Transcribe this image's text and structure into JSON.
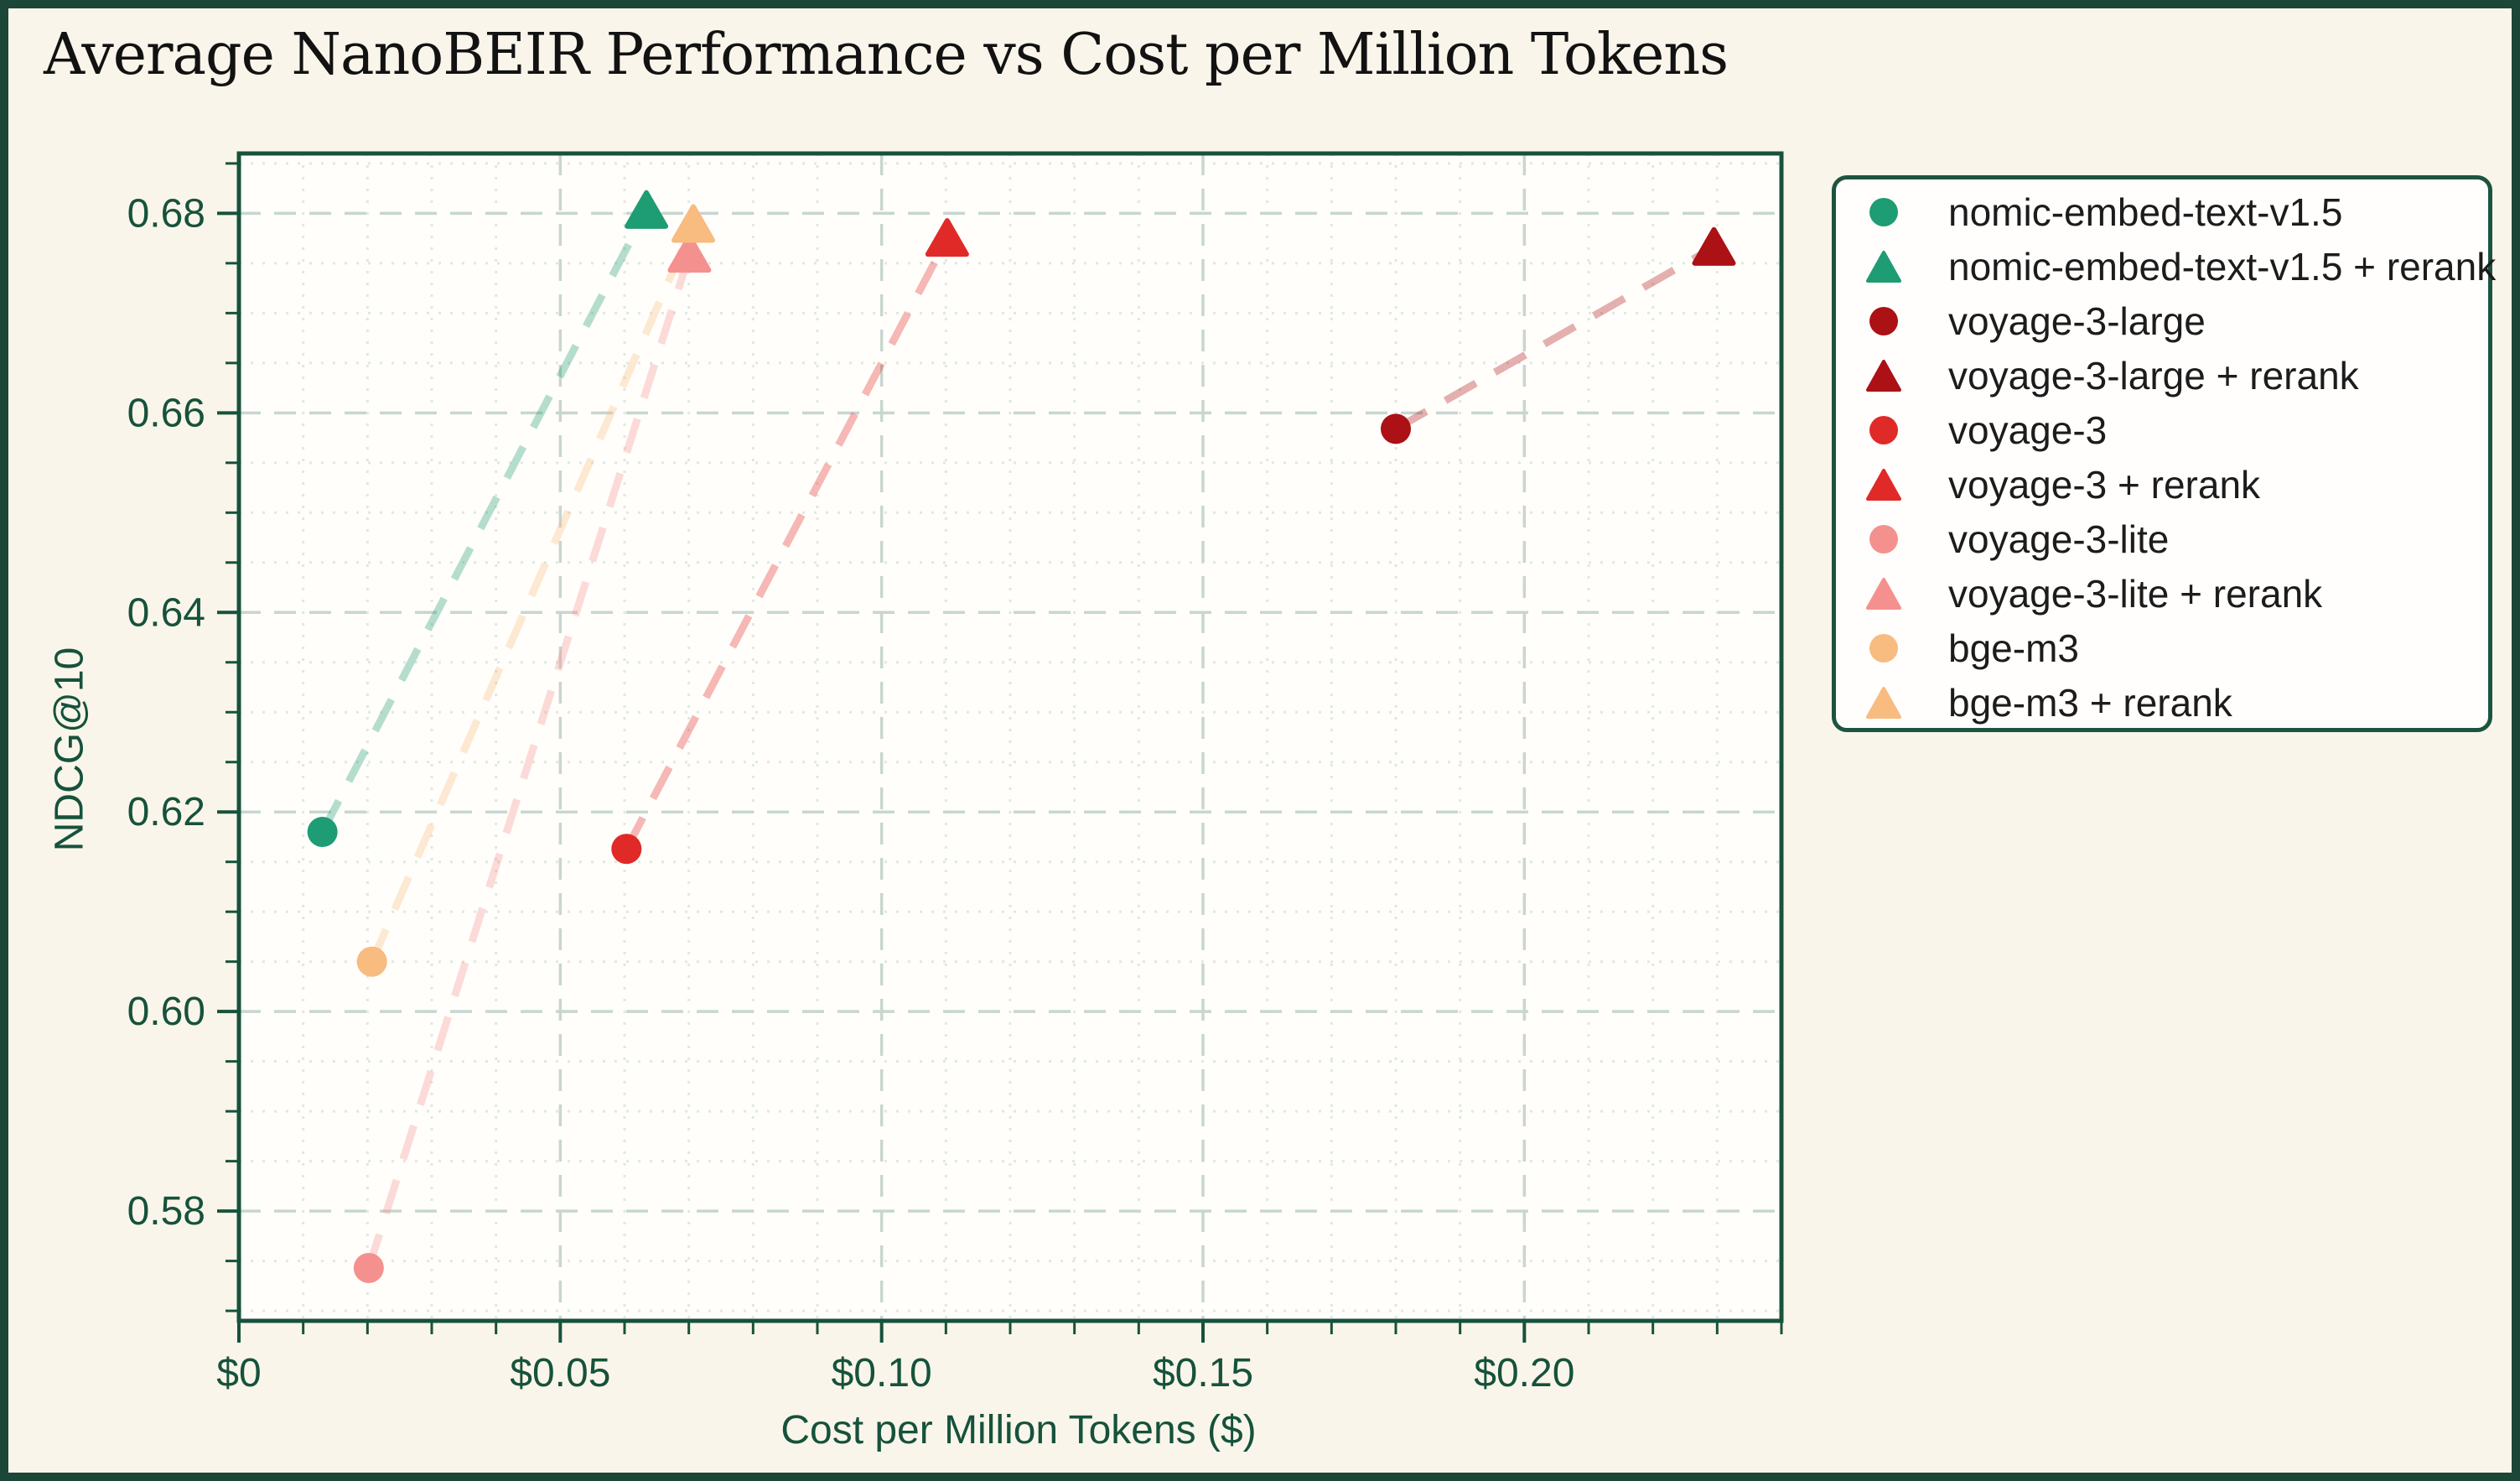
{
  "chart_data": {
    "type": "scatter",
    "title": "Average NanoBEIR Performance vs Cost per Million Tokens",
    "xlabel": "Cost per Million Tokens ($)",
    "ylabel": "NDCG@10",
    "xlim": [
      0,
      0.24
    ],
    "ylim": [
      0.569,
      0.686
    ],
    "grid": true,
    "legend_position": "outside-right",
    "x_ticks": [
      {
        "value": 0,
        "label": "$0"
      },
      {
        "value": 0.05,
        "label": "$0.05"
      },
      {
        "value": 0.1,
        "label": "$0.10"
      },
      {
        "value": 0.15,
        "label": "$0.15"
      },
      {
        "value": 0.2,
        "label": "$0.20"
      }
    ],
    "y_ticks": [
      {
        "value": 0.58,
        "label": "0.58"
      },
      {
        "value": 0.6,
        "label": "0.60"
      },
      {
        "value": 0.62,
        "label": "0.62"
      },
      {
        "value": 0.64,
        "label": "0.64"
      },
      {
        "value": 0.66,
        "label": "0.66"
      },
      {
        "value": 0.68,
        "label": "0.68"
      }
    ],
    "x_minor_step": 0.01,
    "y_minor_step": 0.005,
    "series": [
      {
        "name": "nomic-embed-text-v1.5",
        "marker": "circle",
        "color": "#1e9c74",
        "x": 0.013,
        "y": 0.618
      },
      {
        "name": "nomic-embed-text-v1.5 + rerank",
        "marker": "triangle",
        "color": "#1e9c74",
        "x": 0.0634,
        "y": 0.6803
      },
      {
        "name": "voyage-3-large",
        "marker": "circle",
        "color": "#ab1115",
        "x": 0.18,
        "y": 0.6584
      },
      {
        "name": "voyage-3-large + rerank",
        "marker": "triangle",
        "color": "#ab1115",
        "x": 0.2295,
        "y": 0.6766
      },
      {
        "name": "voyage-3",
        "marker": "circle",
        "color": "#e02a28",
        "x": 0.0603,
        "y": 0.6163
      },
      {
        "name": "voyage-3 + rerank",
        "marker": "triangle",
        "color": "#e02a28",
        "x": 0.1102,
        "y": 0.6775
      },
      {
        "name": "voyage-3-lite",
        "marker": "circle",
        "color": "#f4918e",
        "x": 0.0202,
        "y": 0.5743
      },
      {
        "name": "voyage-3-lite + rerank",
        "marker": "triangle",
        "color": "#f4918e",
        "x": 0.0701,
        "y": 0.6759
      },
      {
        "name": "bge-m3",
        "marker": "circle",
        "color": "#f8bb80",
        "x": 0.0207,
        "y": 0.605
      },
      {
        "name": "bge-m3 + rerank",
        "marker": "triangle",
        "color": "#f8bb80",
        "x": 0.0707,
        "y": 0.6789
      }
    ],
    "connectors": [
      [
        0,
        1
      ],
      [
        2,
        3
      ],
      [
        4,
        5
      ],
      [
        6,
        7
      ],
      [
        8,
        9
      ]
    ]
  },
  "colors": {
    "background": "#faf5ea",
    "frame": "#1c4637",
    "plot_bg": "#fffefb",
    "axis": "#17523c",
    "tick_label": "#16523c",
    "grid_major": "#c8d6cf",
    "grid_minor": "#dfe8e2",
    "legend_border": "#1d5440",
    "legend_bg": "#fffefc"
  }
}
